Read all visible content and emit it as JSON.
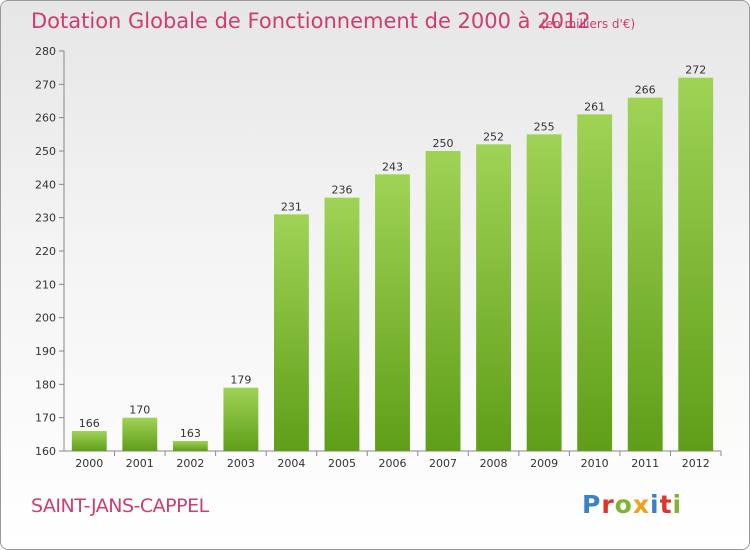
{
  "header": {
    "title": "Dotation Globale de Fonctionnement de 2000 à 2012",
    "unit": "(en milliers d'€)"
  },
  "footer": {
    "city": "SAINT-JANS-CAPPEL",
    "brand": "Proxiti",
    "brand_letters": [
      {
        "ch": "P",
        "color": "#3a82c8"
      },
      {
        "ch": "r",
        "color": "#e2332b"
      },
      {
        "ch": "o",
        "color": "#7fb52e"
      },
      {
        "ch": "x",
        "color": "#f0a11a"
      },
      {
        "ch": "i",
        "color": "#3a82c8"
      },
      {
        "ch": "t",
        "color": "#e2332b"
      },
      {
        "ch": "i",
        "color": "#7fb52e"
      }
    ]
  },
  "chart_data": {
    "type": "bar",
    "title": "Dotation Globale de Fonctionnement de 2000 à 2012",
    "subtitle": "(en milliers d'€)",
    "categories": [
      "2000",
      "2001",
      "2002",
      "2003",
      "2004",
      "2005",
      "2006",
      "2007",
      "2008",
      "2009",
      "2010",
      "2011",
      "2012"
    ],
    "values": [
      166,
      170,
      163,
      179,
      231,
      236,
      243,
      250,
      252,
      255,
      261,
      266,
      272
    ],
    "ylim": [
      160,
      280
    ],
    "yticks": [
      160,
      170,
      180,
      190,
      200,
      210,
      220,
      230,
      240,
      250,
      260,
      270,
      280
    ],
    "grid": false,
    "bar_color_top": "#9fd356",
    "bar_color_bottom": "#5f9e18"
  }
}
